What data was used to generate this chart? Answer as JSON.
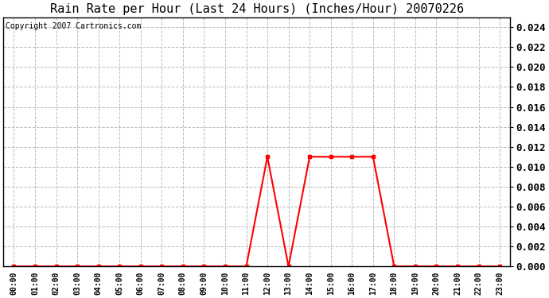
{
  "title": "Rain Rate per Hour (Last 24 Hours) (Inches/Hour) 20070226",
  "copyright_text": "Copyright 2007 Cartronics.com",
  "hours": [
    0,
    1,
    2,
    3,
    4,
    5,
    6,
    7,
    8,
    9,
    10,
    11,
    12,
    13,
    14,
    15,
    16,
    17,
    18,
    19,
    20,
    21,
    22,
    23
  ],
  "x_labels": [
    "00:00",
    "01:00",
    "02:00",
    "03:00",
    "04:00",
    "05:00",
    "06:00",
    "07:00",
    "08:00",
    "09:00",
    "10:00",
    "11:00",
    "12:00",
    "13:00",
    "14:00",
    "15:00",
    "16:00",
    "17:00",
    "18:00",
    "19:00",
    "20:00",
    "21:00",
    "22:00",
    "23:00"
  ],
  "values": [
    0.0,
    0.0,
    0.0,
    0.0,
    0.0,
    0.0,
    0.0,
    0.0,
    0.0,
    0.0,
    0.0,
    0.0,
    0.011,
    0.0,
    0.011,
    0.011,
    0.011,
    0.011,
    0.0,
    0.0,
    0.0,
    0.0,
    0.0,
    0.0
  ],
  "line_color": "#ff0000",
  "marker": "s",
  "marker_size": 3,
  "background_color": "#ffffff",
  "plot_bg_color": "#ffffff",
  "grid_color": "#bbbbbb",
  "grid_style": "--",
  "ylim": [
    0.0,
    0.025
  ],
  "yticks": [
    0.0,
    0.002,
    0.004,
    0.006,
    0.008,
    0.01,
    0.012,
    0.014,
    0.016,
    0.018,
    0.02,
    0.022,
    0.024
  ],
  "title_fontsize": 11,
  "copyright_fontsize": 7,
  "tick_fontsize": 9,
  "x_tick_fontsize": 7,
  "border_color": "#000000",
  "linewidth": 1.5
}
